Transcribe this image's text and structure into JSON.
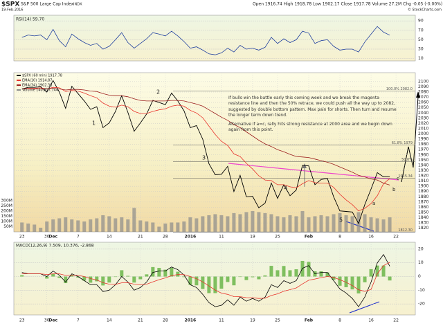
{
  "header": {
    "symbol": "$SPX",
    "name": "S&P 500 Large Cap Index",
    "exchange": "INDX",
    "date": "19-Feb-2016",
    "quote": "Open 1916.74  High 1918.78  Low 1902.17  Close 1917.78  Volume 27.2M  Chg -0.05 (-0.00%)",
    "credit": "© StockCharts.com"
  },
  "chart_data": [
    {
      "type": "line",
      "title": "RSI(14) 59.70",
      "xlim": [
        -1.3,
        63.1
      ],
      "ylim": [
        5,
        102
      ],
      "yticks": [
        90,
        70,
        50,
        30,
        10
      ],
      "grid": true,
      "series": [
        {
          "color": "#1f3f9f",
          "values": [
            55,
            60,
            58,
            60,
            50,
            72,
            48,
            35,
            62,
            52,
            44,
            38,
            42,
            30,
            36,
            50,
            65,
            44,
            32,
            42,
            52,
            65,
            62,
            58,
            68,
            58,
            46,
            32,
            35,
            28,
            20,
            18,
            22,
            32,
            24,
            38,
            30,
            32,
            28,
            34,
            55,
            42,
            52,
            44,
            50,
            68,
            64,
            42,
            48,
            50,
            36,
            28,
            30,
            30,
            24,
            45,
            62,
            78,
            66,
            59.7
          ]
        }
      ]
    },
    {
      "type": "line",
      "xlim": [
        -1.3,
        63.1
      ],
      "ylim": [
        1813,
        2117
      ],
      "grid": true,
      "yticks": [
        2100,
        2090,
        2080,
        2070,
        2060,
        2050,
        2040,
        2030,
        2020,
        2010,
        2000,
        1990,
        1980,
        1970,
        1960,
        1950,
        1940,
        1930,
        1920,
        1910,
        1900,
        1890,
        1880,
        1870,
        1860,
        1850,
        1840,
        1830,
        1820
      ],
      "y2lim": [
        0,
        1530
      ],
      "y2ticks": [
        {
          "value": 300,
          "label": "300M"
        },
        {
          "value": 250,
          "label": "250M"
        },
        {
          "value": 200,
          "label": "200M"
        },
        {
          "value": 150,
          "label": "150M"
        },
        {
          "value": 100,
          "label": "100M"
        },
        {
          "value": 50,
          "label": "50M"
        }
      ],
      "xticks": [
        {
          "value": 0,
          "label": "23"
        },
        {
          "value": 4,
          "label": "30"
        },
        {
          "value": 5,
          "label": "Dec"
        },
        {
          "value": 9,
          "label": "7"
        },
        {
          "value": 14,
          "label": "14"
        },
        {
          "value": 19,
          "label": "21"
        },
        {
          "value": 23,
          "label": "28"
        },
        {
          "value": 27,
          "label": "2016"
        },
        {
          "value": 32,
          "label": "11"
        },
        {
          "value": 37,
          "label": "19"
        },
        {
          "value": 41,
          "label": "25"
        },
        {
          "value": 46,
          "label": "Feb"
        },
        {
          "value": 51,
          "label": "8"
        },
        {
          "value": 56,
          "label": "16"
        },
        {
          "value": 60,
          "label": "22"
        }
      ],
      "series": [
        {
          "name": "$SPX (60 min) 1917.78",
          "color": "#000000",
          "values": [
            2086,
            2089,
            2089,
            2090,
            2080,
            2102,
            2080,
            2049,
            2091,
            2077,
            2063,
            2047,
            2052,
            2012,
            2021,
            2043,
            2073,
            2041,
            2005,
            2021,
            2038,
            2064,
            2060,
            2056,
            2078,
            2063,
            2044,
            2012,
            2016,
            1990,
            1943,
            1922,
            1923,
            1938,
            1890,
            1921,
            1880,
            1881,
            1859,
            1868,
            1906,
            1877,
            1903,
            1882,
            1893,
            1940,
            1939,
            1903,
            1913,
            1915,
            1880,
            1853,
            1852,
            1851,
            1829,
            1865,
            1895,
            1926,
            1918,
            1918
          ]
        },
        {
          "name": "EMA(10) 1914.87",
          "color": "#e8322b",
          "values": [
            2086,
            2087,
            2087,
            2088,
            2086,
            2089,
            2088,
            2081,
            2083,
            2082,
            2078,
            2073,
            2069,
            2059,
            2053,
            2051,
            2055,
            2052,
            2043,
            2039,
            2039,
            2043,
            2046,
            2048,
            2053,
            2055,
            2053,
            2045,
            2040,
            2031,
            2015,
            1999,
            1986,
            1978,
            1962,
            1957,
            1944,
            1933,
            1920,
            1912,
            1911,
            1903,
            1903,
            1899,
            1897,
            1905,
            1911,
            1907,
            1906,
            1906,
            1898,
            1885,
            1874,
            1865,
            1853,
            1858,
            1867,
            1882,
            1905,
            1914.87
          ]
        },
        {
          "name": "EMA(34) 1902.38",
          "color": "#9b1c1c",
          "values": [
            2086,
            2086,
            2086,
            2086,
            2086,
            2087,
            2086,
            2084,
            2085,
            2085,
            2084,
            2082,
            2081,
            2077,
            2074,
            2073,
            2073,
            2071,
            2067,
            2064,
            2063,
            2063,
            2063,
            2063,
            2064,
            2064,
            2063,
            2060,
            2057,
            2053,
            2046,
            2039,
            2032,
            2026,
            2018,
            2012,
            2004,
            1996,
            1988,
            1981,
            1976,
            1970,
            1966,
            1961,
            1957,
            1956,
            1955,
            1952,
            1949,
            1946,
            1942,
            1937,
            1932,
            1927,
            1921,
            1918,
            1914,
            1912,
            1906,
            1902.38
          ]
        },
        {
          "name": "Volume 140,817,744",
          "color": "#8c8c8c",
          "axis": "y2",
          "values": [
            90,
            80,
            70,
            40,
            100,
            120,
            130,
            140,
            120,
            110,
            100,
            120,
            130,
            160,
            150,
            130,
            140,
            120,
            230,
            110,
            100,
            90,
            50,
            80,
            90,
            90,
            100,
            140,
            130,
            150,
            160,
            170,
            160,
            150,
            180,
            170,
            190,
            200,
            190,
            180,
            170,
            150,
            140,
            160,
            150,
            200,
            140,
            150,
            160,
            150,
            170,
            180,
            160,
            150,
            190,
            170,
            140,
            130,
            120,
            140
          ]
        }
      ],
      "fib_levels": [
        {
          "value": 2082,
          "label": "100.0% 2082.0"
        },
        {
          "value": 1979,
          "label": "61.8% 1979"
        },
        {
          "value": 1947,
          "label": "50.0%"
        },
        {
          "value": 1915.34,
          "label": "1915.34"
        },
        {
          "value": 1812.3,
          "label": "1812.30"
        }
      ],
      "wave_labels": [
        "1",
        "2",
        "3",
        "4",
        "5",
        "a",
        "b",
        "c"
      ],
      "note": [
        "If bulls win the battle early this coming week and we break the magenta resistance line and then the 50% retrace, we could push all the way up to 2082, suggested by double bottom pattern.  Max pain for shorts.  Then turn and resume the longer term down trend.",
        "Alternative if a=c, rally hits strong resistance at 2000 area and we begin down again from this point."
      ]
    },
    {
      "type": "line",
      "title": "MACD(12,26,9) 7.509, 10.376, -2.868",
      "xlim": [
        -1.3,
        63.1
      ],
      "ylim": [
        -28,
        25
      ],
      "yticks": [
        20,
        10,
        0,
        -10,
        -20
      ],
      "grid": true,
      "xticks": [
        {
          "value": 0,
          "label": "23"
        },
        {
          "value": 4,
          "label": "30"
        },
        {
          "value": 5,
          "label": "Dec"
        },
        {
          "value": 9,
          "label": "7"
        },
        {
          "value": 14,
          "label": "14"
        },
        {
          "value": 19,
          "label": "21"
        },
        {
          "value": 23,
          "label": "28"
        },
        {
          "value": 27,
          "label": "2016"
        },
        {
          "value": 32,
          "label": "11"
        },
        {
          "value": 37,
          "label": "19"
        },
        {
          "value": 41,
          "label": "25"
        },
        {
          "value": 46,
          "label": "Feb"
        },
        {
          "value": 51,
          "label": "8"
        },
        {
          "value": 56,
          "label": "16"
        },
        {
          "value": 60,
          "label": "22"
        }
      ],
      "series": [
        {
          "color": "#000000",
          "values": [
            3,
            2,
            2,
            2,
            0,
            4,
            1,
            -4,
            2,
            0,
            -3,
            -6,
            -6,
            -11,
            -10,
            -6,
            0,
            -4,
            -10,
            -8,
            -4,
            3,
            4,
            4,
            7,
            5,
            1,
            -6,
            -8,
            -13,
            -19,
            -22,
            -21,
            -17,
            -21,
            -15,
            -18,
            -16,
            -18,
            -15,
            -6,
            -8,
            -3,
            -5,
            -3,
            6,
            8,
            2,
            3,
            3,
            -3,
            -9,
            -12,
            -16,
            -22,
            -15,
            -4,
            10,
            16,
            7.509
          ]
        },
        {
          "color": "#e8322b",
          "values": [
            2,
            2,
            2,
            2,
            1.5,
            2,
            2,
            0.8,
            1,
            0.8,
            0,
            -1.5,
            -2.5,
            -4.5,
            -5.6,
            -5.7,
            -4.6,
            -4.5,
            -5.6,
            -6,
            -5.6,
            -3.9,
            -2.3,
            -1,
            0.6,
            1.5,
            1.4,
            0,
            -1.6,
            -3.9,
            -6.9,
            -9.9,
            -12.1,
            -13,
            -14.6,
            -14.7,
            -15.4,
            -15.5,
            -16,
            -15.8,
            -13.8,
            -12.6,
            -10.7,
            -9.6,
            -8.3,
            -5.4,
            -2.7,
            -1.8,
            -0.8,
            0,
            -0.6,
            -2.3,
            -4.2,
            -6.6,
            -9.7,
            -10.8,
            -9.4,
            2,
            8,
            10.376
          ]
        },
        {
          "color": "#7fbf5f",
          "bars": true,
          "values": [
            1,
            0,
            0,
            0,
            -1.5,
            2,
            -1,
            -4.8,
            1,
            -0.8,
            -3,
            -4.5,
            -3.5,
            -6.5,
            -4.4,
            -0.3,
            4.6,
            0.5,
            -4.4,
            -2,
            1.6,
            6.9,
            6.3,
            5,
            6.4,
            3.5,
            -0.4,
            -6,
            -6.4,
            -9.1,
            -12.1,
            -12.1,
            -8.9,
            -4,
            -6.4,
            -0.3,
            -2.6,
            -0.5,
            -2,
            0.8,
            7.8,
            4.6,
            7.7,
            4.6,
            5.3,
            11.4,
            10.7,
            3.8,
            3.8,
            3,
            -2.4,
            -6.7,
            -7.8,
            -9.4,
            -12.3,
            -4.2,
            5.4,
            8,
            8,
            -2.868
          ]
        }
      ]
    }
  ]
}
